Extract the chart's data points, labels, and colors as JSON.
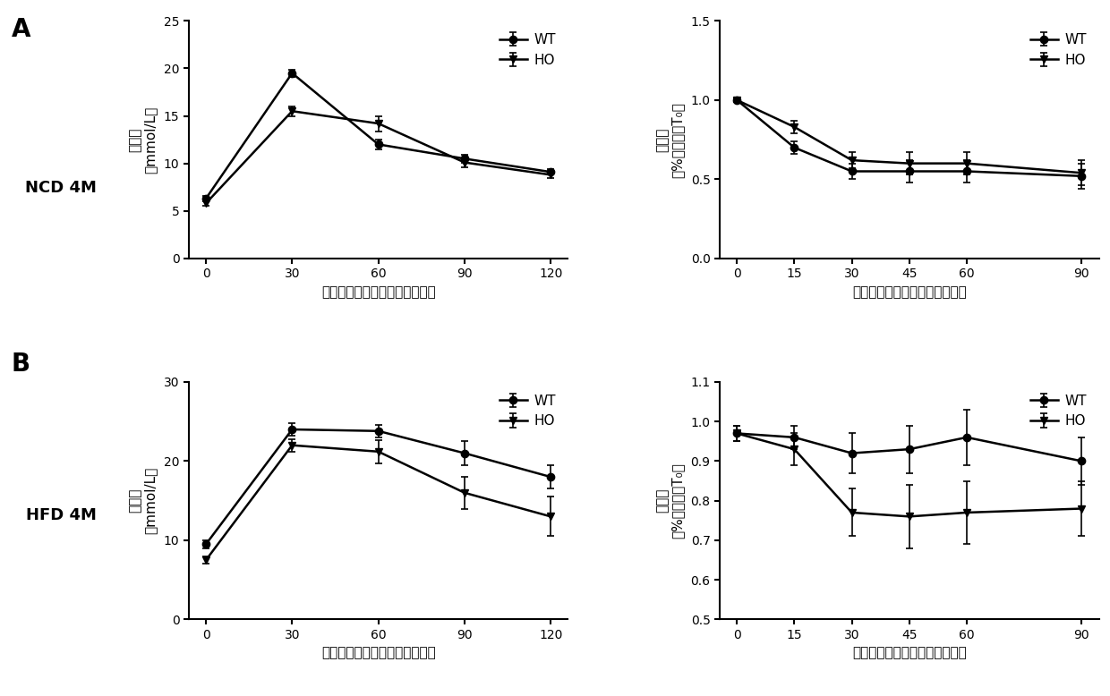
{
  "panel_A_left": {
    "xlabel": "腹腔注射葡萄糖后时间（分钟）",
    "ylabel_chars": [
      "葡",
      "萄",
      "糖",
      "mmol/L"
    ],
    "ylabel_top": "葡萄糖",
    "ylabel_bottom": "mmol/L",
    "xdata": [
      0,
      30,
      60,
      90,
      120
    ],
    "WT_y": [
      6.3,
      19.5,
      12.0,
      10.5,
      9.1
    ],
    "WT_err": [
      0.3,
      0.4,
      0.5,
      0.4,
      0.3
    ],
    "HO_y": [
      5.8,
      15.5,
      14.2,
      10.1,
      8.8
    ],
    "HO_err": [
      0.3,
      0.5,
      0.8,
      0.5,
      0.3
    ],
    "ylim": [
      0,
      25
    ],
    "yticks": [
      0,
      5,
      10,
      15,
      20,
      25
    ],
    "xticks": [
      0,
      30,
      60,
      90,
      120
    ],
    "xlim": [
      -6,
      126
    ]
  },
  "panel_A_right": {
    "xlabel": "腹腔注射葡萄糖后时间（分钟）",
    "ylabel_top": "葡萄糖",
    "ylabel_bottom": "%血糖浓度T₀",
    "xdata": [
      0,
      15,
      30,
      45,
      60,
      90
    ],
    "WT_y": [
      1.0,
      0.7,
      0.55,
      0.55,
      0.55,
      0.52
    ],
    "WT_err": [
      0.01,
      0.04,
      0.05,
      0.07,
      0.07,
      0.08
    ],
    "HO_y": [
      1.0,
      0.83,
      0.62,
      0.6,
      0.6,
      0.54
    ],
    "HO_err": [
      0.01,
      0.04,
      0.05,
      0.07,
      0.07,
      0.08
    ],
    "ylim": [
      0.0,
      1.5
    ],
    "yticks": [
      0.0,
      0.5,
      1.0,
      1.5
    ],
    "xticks": [
      0,
      15,
      30,
      45,
      60,
      90
    ],
    "xlim": [
      -4.5,
      94.5
    ]
  },
  "panel_B_left": {
    "xlabel": "腹腔注射葡萄糖后时间（分钟）",
    "ylabel_top": "葡萄糖",
    "ylabel_bottom": "mmol/L",
    "xdata": [
      0,
      30,
      60,
      90,
      120
    ],
    "WT_y": [
      9.5,
      24.0,
      23.8,
      21.0,
      18.0
    ],
    "WT_err": [
      0.5,
      0.8,
      0.8,
      1.5,
      1.5
    ],
    "HO_y": [
      7.5,
      22.0,
      21.2,
      16.0,
      13.0
    ],
    "HO_err": [
      0.5,
      0.8,
      1.5,
      2.0,
      2.5
    ],
    "ylim": [
      0,
      30
    ],
    "yticks": [
      0,
      10,
      20,
      30
    ],
    "xticks": [
      0,
      30,
      60,
      90,
      120
    ],
    "xlim": [
      -6,
      126
    ]
  },
  "panel_B_right": {
    "xlabel": "腹腔注射葡萄糖后时间（分钟）",
    "ylabel_top": "葡萄糖",
    "ylabel_bottom": "%血糖浓度T₀",
    "xdata": [
      0,
      15,
      30,
      45,
      60,
      90
    ],
    "WT_y": [
      0.97,
      0.96,
      0.92,
      0.93,
      0.96,
      0.9
    ],
    "WT_err": [
      0.02,
      0.03,
      0.05,
      0.06,
      0.07,
      0.06
    ],
    "HO_y": [
      0.97,
      0.93,
      0.77,
      0.76,
      0.77,
      0.78
    ],
    "HO_err": [
      0.02,
      0.04,
      0.06,
      0.08,
      0.08,
      0.07
    ],
    "ylim": [
      0.5,
      1.1
    ],
    "yticks": [
      0.5,
      0.6,
      0.7,
      0.8,
      0.9,
      1.0,
      1.1
    ],
    "xticks": [
      0,
      15,
      30,
      45,
      60,
      90
    ],
    "xlim": [
      -4.5,
      94.5
    ]
  },
  "line_color": "#000000",
  "marker_WT": "o",
  "marker_HO": "v",
  "markersize": 6,
  "linewidth": 1.8,
  "font_size_label": 11,
  "font_size_tick": 10,
  "font_size_panel": 20,
  "font_size_row": 13,
  "font_size_legend": 11,
  "font_size_ylabel": 11
}
